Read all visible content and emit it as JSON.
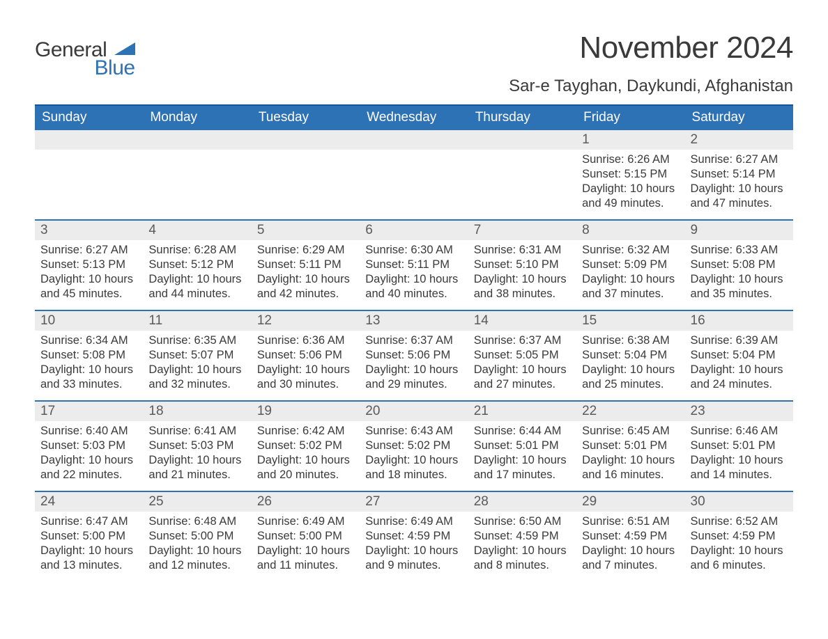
{
  "brand": {
    "word1": "General",
    "word2": "Blue",
    "accent": "#2e72b6",
    "text_color": "#3a3a3a"
  },
  "title": "November 2024",
  "location": "Sar-e Tayghan, Daykundi, Afghanistan",
  "colors": {
    "header_bg": "#2e72b6",
    "header_border": "#17549a",
    "week_border": "#2e72b6",
    "daynum_bg": "#ececec",
    "page_bg": "#ffffff",
    "body_text": "#3a3a3a"
  },
  "typography": {
    "title_fontsize": 44,
    "location_fontsize": 24,
    "dow_fontsize": 19,
    "daynum_fontsize": 19,
    "body_fontsize": 16.5
  },
  "layout": {
    "columns": 7,
    "rows": 5,
    "first_day_column_index": 5
  },
  "days_of_week": [
    "Sunday",
    "Monday",
    "Tuesday",
    "Wednesday",
    "Thursday",
    "Friday",
    "Saturday"
  ],
  "days": [
    {
      "n": 1,
      "sr": "6:26 AM",
      "ss": "5:15 PM",
      "dl": "10 hours and 49 minutes."
    },
    {
      "n": 2,
      "sr": "6:27 AM",
      "ss": "5:14 PM",
      "dl": "10 hours and 47 minutes."
    },
    {
      "n": 3,
      "sr": "6:27 AM",
      "ss": "5:13 PM",
      "dl": "10 hours and 45 minutes."
    },
    {
      "n": 4,
      "sr": "6:28 AM",
      "ss": "5:12 PM",
      "dl": "10 hours and 44 minutes."
    },
    {
      "n": 5,
      "sr": "6:29 AM",
      "ss": "5:11 PM",
      "dl": "10 hours and 42 minutes."
    },
    {
      "n": 6,
      "sr": "6:30 AM",
      "ss": "5:11 PM",
      "dl": "10 hours and 40 minutes."
    },
    {
      "n": 7,
      "sr": "6:31 AM",
      "ss": "5:10 PM",
      "dl": "10 hours and 38 minutes."
    },
    {
      "n": 8,
      "sr": "6:32 AM",
      "ss": "5:09 PM",
      "dl": "10 hours and 37 minutes."
    },
    {
      "n": 9,
      "sr": "6:33 AM",
      "ss": "5:08 PM",
      "dl": "10 hours and 35 minutes."
    },
    {
      "n": 10,
      "sr": "6:34 AM",
      "ss": "5:08 PM",
      "dl": "10 hours and 33 minutes."
    },
    {
      "n": 11,
      "sr": "6:35 AM",
      "ss": "5:07 PM",
      "dl": "10 hours and 32 minutes."
    },
    {
      "n": 12,
      "sr": "6:36 AM",
      "ss": "5:06 PM",
      "dl": "10 hours and 30 minutes."
    },
    {
      "n": 13,
      "sr": "6:37 AM",
      "ss": "5:06 PM",
      "dl": "10 hours and 29 minutes."
    },
    {
      "n": 14,
      "sr": "6:37 AM",
      "ss": "5:05 PM",
      "dl": "10 hours and 27 minutes."
    },
    {
      "n": 15,
      "sr": "6:38 AM",
      "ss": "5:04 PM",
      "dl": "10 hours and 25 minutes."
    },
    {
      "n": 16,
      "sr": "6:39 AM",
      "ss": "5:04 PM",
      "dl": "10 hours and 24 minutes."
    },
    {
      "n": 17,
      "sr": "6:40 AM",
      "ss": "5:03 PM",
      "dl": "10 hours and 22 minutes."
    },
    {
      "n": 18,
      "sr": "6:41 AM",
      "ss": "5:03 PM",
      "dl": "10 hours and 21 minutes."
    },
    {
      "n": 19,
      "sr": "6:42 AM",
      "ss": "5:02 PM",
      "dl": "10 hours and 20 minutes."
    },
    {
      "n": 20,
      "sr": "6:43 AM",
      "ss": "5:02 PM",
      "dl": "10 hours and 18 minutes."
    },
    {
      "n": 21,
      "sr": "6:44 AM",
      "ss": "5:01 PM",
      "dl": "10 hours and 17 minutes."
    },
    {
      "n": 22,
      "sr": "6:45 AM",
      "ss": "5:01 PM",
      "dl": "10 hours and 16 minutes."
    },
    {
      "n": 23,
      "sr": "6:46 AM",
      "ss": "5:01 PM",
      "dl": "10 hours and 14 minutes."
    },
    {
      "n": 24,
      "sr": "6:47 AM",
      "ss": "5:00 PM",
      "dl": "10 hours and 13 minutes."
    },
    {
      "n": 25,
      "sr": "6:48 AM",
      "ss": "5:00 PM",
      "dl": "10 hours and 12 minutes."
    },
    {
      "n": 26,
      "sr": "6:49 AM",
      "ss": "5:00 PM",
      "dl": "10 hours and 11 minutes."
    },
    {
      "n": 27,
      "sr": "6:49 AM",
      "ss": "4:59 PM",
      "dl": "10 hours and 9 minutes."
    },
    {
      "n": 28,
      "sr": "6:50 AM",
      "ss": "4:59 PM",
      "dl": "10 hours and 8 minutes."
    },
    {
      "n": 29,
      "sr": "6:51 AM",
      "ss": "4:59 PM",
      "dl": "10 hours and 7 minutes."
    },
    {
      "n": 30,
      "sr": "6:52 AM",
      "ss": "4:59 PM",
      "dl": "10 hours and 6 minutes."
    }
  ],
  "labels": {
    "sunrise": "Sunrise: ",
    "sunset": "Sunset: ",
    "daylight": "Daylight: "
  }
}
